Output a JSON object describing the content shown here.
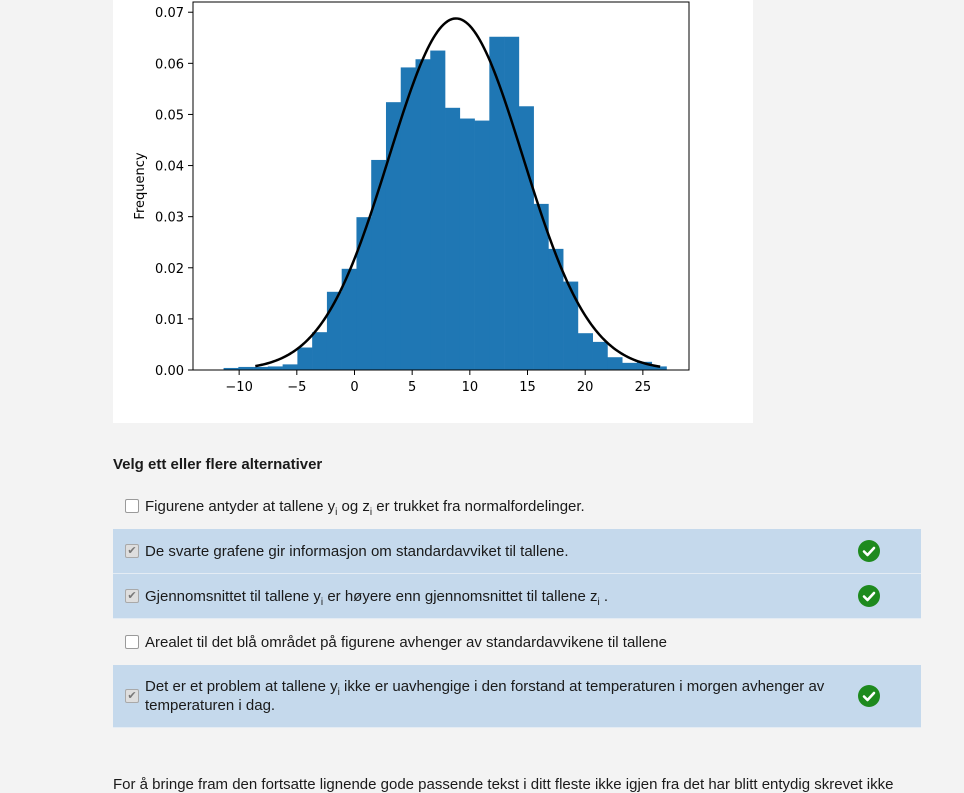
{
  "chart_data": {
    "type": "bar",
    "ylabel": "Frequency",
    "xlabel": "",
    "title": "",
    "xlim": [
      -14,
      29
    ],
    "ylim": [
      0,
      0.072
    ],
    "xticks": [
      -10,
      -5,
      0,
      5,
      10,
      15,
      20,
      25
    ],
    "xtick_labels": [
      "−10",
      "−5",
      "0",
      "5",
      "10",
      "15",
      "20",
      "25"
    ],
    "yticks": [
      0.0,
      0.01,
      0.02,
      0.03,
      0.04,
      0.05,
      0.06,
      0.07
    ],
    "ytick_labels": [
      "0.00",
      "0.01",
      "0.02",
      "0.03",
      "0.04",
      "0.05",
      "0.06",
      "0.07"
    ],
    "bar_color": "#1f77b4",
    "curve_color": "#000000",
    "bin_width": 1.28,
    "bin_starts": [
      -11.35,
      -10.07,
      -8.79,
      -7.51,
      -6.23,
      -4.95,
      -3.67,
      -2.39,
      -1.11,
      0.17,
      1.45,
      2.73,
      4.01,
      5.29,
      6.57,
      7.85,
      9.13,
      10.41,
      11.69,
      12.97,
      14.25,
      15.53,
      16.81,
      18.09,
      19.37,
      20.65,
      21.93,
      23.21,
      24.49,
      25.77
    ],
    "values": [
      0.0004,
      0.0006,
      0.0006,
      0.0007,
      0.0011,
      0.0044,
      0.0074,
      0.0153,
      0.0198,
      0.0299,
      0.0411,
      0.0524,
      0.0592,
      0.0608,
      0.0625,
      0.0513,
      0.0492,
      0.0488,
      0.0652,
      0.0652,
      0.0516,
      0.0325,
      0.0237,
      0.0173,
      0.0072,
      0.0055,
      0.0025,
      0.0014,
      0.0016,
      0.0007
    ],
    "normal_curve": {
      "mean": 8.8,
      "std": 5.8,
      "x_range": [
        -8.6,
        26.5
      ]
    }
  },
  "question": {
    "instruction": "Velg ett eller flere alternativer",
    "options": [
      {
        "pre": "Figurene antyder at tallene y",
        "sub1": "i",
        "mid": " og z",
        "sub2": "i",
        "post": " er trukket fra  normalfordelinger.",
        "selected": false,
        "correct": false
      },
      {
        "pre": "De svarte grafene gir informasjon om standardavviket til tallene.",
        "sub1": "",
        "mid": "",
        "sub2": "",
        "post": "",
        "selected": true,
        "correct": true
      },
      {
        "pre": "Gjennomsnittet til tallene y",
        "sub1": "i",
        "mid": " er høyere enn gjennomsnittet til tallene z",
        "sub2": "i",
        "post": " .",
        "selected": true,
        "correct": true
      },
      {
        "pre": "Arealet til det blå området på figurene avhenger av standardavvikene til tallene",
        "sub1": "",
        "mid": "",
        "sub2": "",
        "post": "",
        "selected": false,
        "correct": false
      },
      {
        "pre": "Det er et problem at tallene y",
        "sub1": "i",
        "mid": " ikke er uavhengige i den forstand at temperaturen i morgen avhenger av temperaturen i dag.",
        "sub2": "",
        "post": "",
        "selected": true,
        "correct": true
      }
    ],
    "checkmark": "✔",
    "correct_color": "#1e8a1e",
    "selected_row_color": "#c5d9ec"
  },
  "footer": {
    "text": "For å bringe fram den fortsatte lignende gode passende tekst i ditt fleste ikke igjen fra det har blitt entydig skrevet ikke"
  }
}
